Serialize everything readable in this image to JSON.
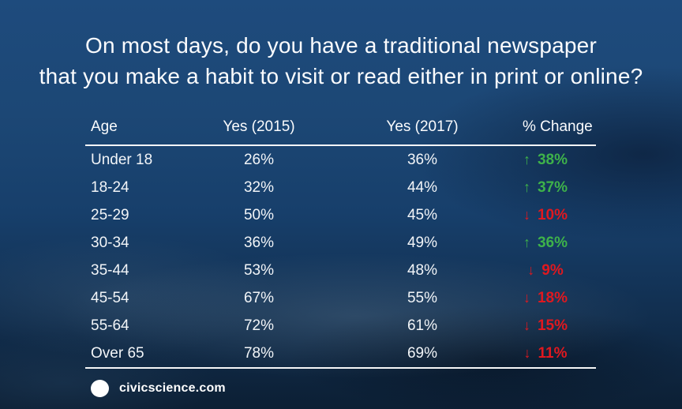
{
  "title": {
    "line1": "On most days, do you have a traditional newspaper",
    "line2": "that you make a habit to visit or read either in print or online?"
  },
  "table": {
    "columns": [
      "Age",
      "Yes (2015)",
      "Yes (2017)",
      "% Change"
    ],
    "rows": [
      {
        "age": "Under 18",
        "yes2015": "26%",
        "yes2017": "36%",
        "arrow": "↑",
        "change": "38%",
        "direction": "up"
      },
      {
        "age": "18-24",
        "yes2015": "32%",
        "yes2017": "44%",
        "arrow": "↑",
        "change": "37%",
        "direction": "up"
      },
      {
        "age": "25-29",
        "yes2015": "50%",
        "yes2017": "45%",
        "arrow": "↓",
        "change": "10%",
        "direction": "down"
      },
      {
        "age": "30-34",
        "yes2015": "36%",
        "yes2017": "49%",
        "arrow": "↑",
        "change": "36%",
        "direction": "up"
      },
      {
        "age": "35-44",
        "yes2015": "53%",
        "yes2017": "48%",
        "arrow": "↓",
        "change": "9%",
        "direction": "down"
      },
      {
        "age": "45-54",
        "yes2015": "67%",
        "yes2017": "55%",
        "arrow": "↓",
        "change": "18%",
        "direction": "down"
      },
      {
        "age": "55-64",
        "yes2015": "72%",
        "yes2017": "61%",
        "arrow": "↓",
        "change": "15%",
        "direction": "down"
      },
      {
        "age": "Over 65",
        "yes2015": "78%",
        "yes2017": "69%",
        "arrow": "↓",
        "change": "11%",
        "direction": "down"
      }
    ]
  },
  "footer": {
    "brand": "civicscience.com"
  },
  "colors": {
    "background_top": "#1e4b7d",
    "background_bottom": "#0c1f34",
    "text": "#ffffff",
    "increase_green": "#3eb24a",
    "decrease_red": "#e0181f"
  },
  "chart_data": {
    "type": "table",
    "title": "On most days, do you have a traditional newspaper that you make a habit to visit or read either in print or online?",
    "columns": [
      "Age",
      "Yes (2015)",
      "Yes (2017)",
      "% Change"
    ],
    "categories": [
      "Under 18",
      "18-24",
      "25-29",
      "30-34",
      "35-44",
      "45-54",
      "55-64",
      "Over 65"
    ],
    "series": [
      {
        "name": "Yes (2015)",
        "unit": "%",
        "values": [
          26,
          32,
          50,
          36,
          53,
          67,
          72,
          78
        ]
      },
      {
        "name": "Yes (2017)",
        "unit": "%",
        "values": [
          36,
          44,
          45,
          49,
          48,
          55,
          61,
          69
        ]
      },
      {
        "name": "% Change",
        "unit": "%",
        "values": [
          38,
          37,
          -10,
          36,
          -9,
          -18,
          -15,
          -11
        ]
      }
    ],
    "source": "civicscience.com"
  }
}
